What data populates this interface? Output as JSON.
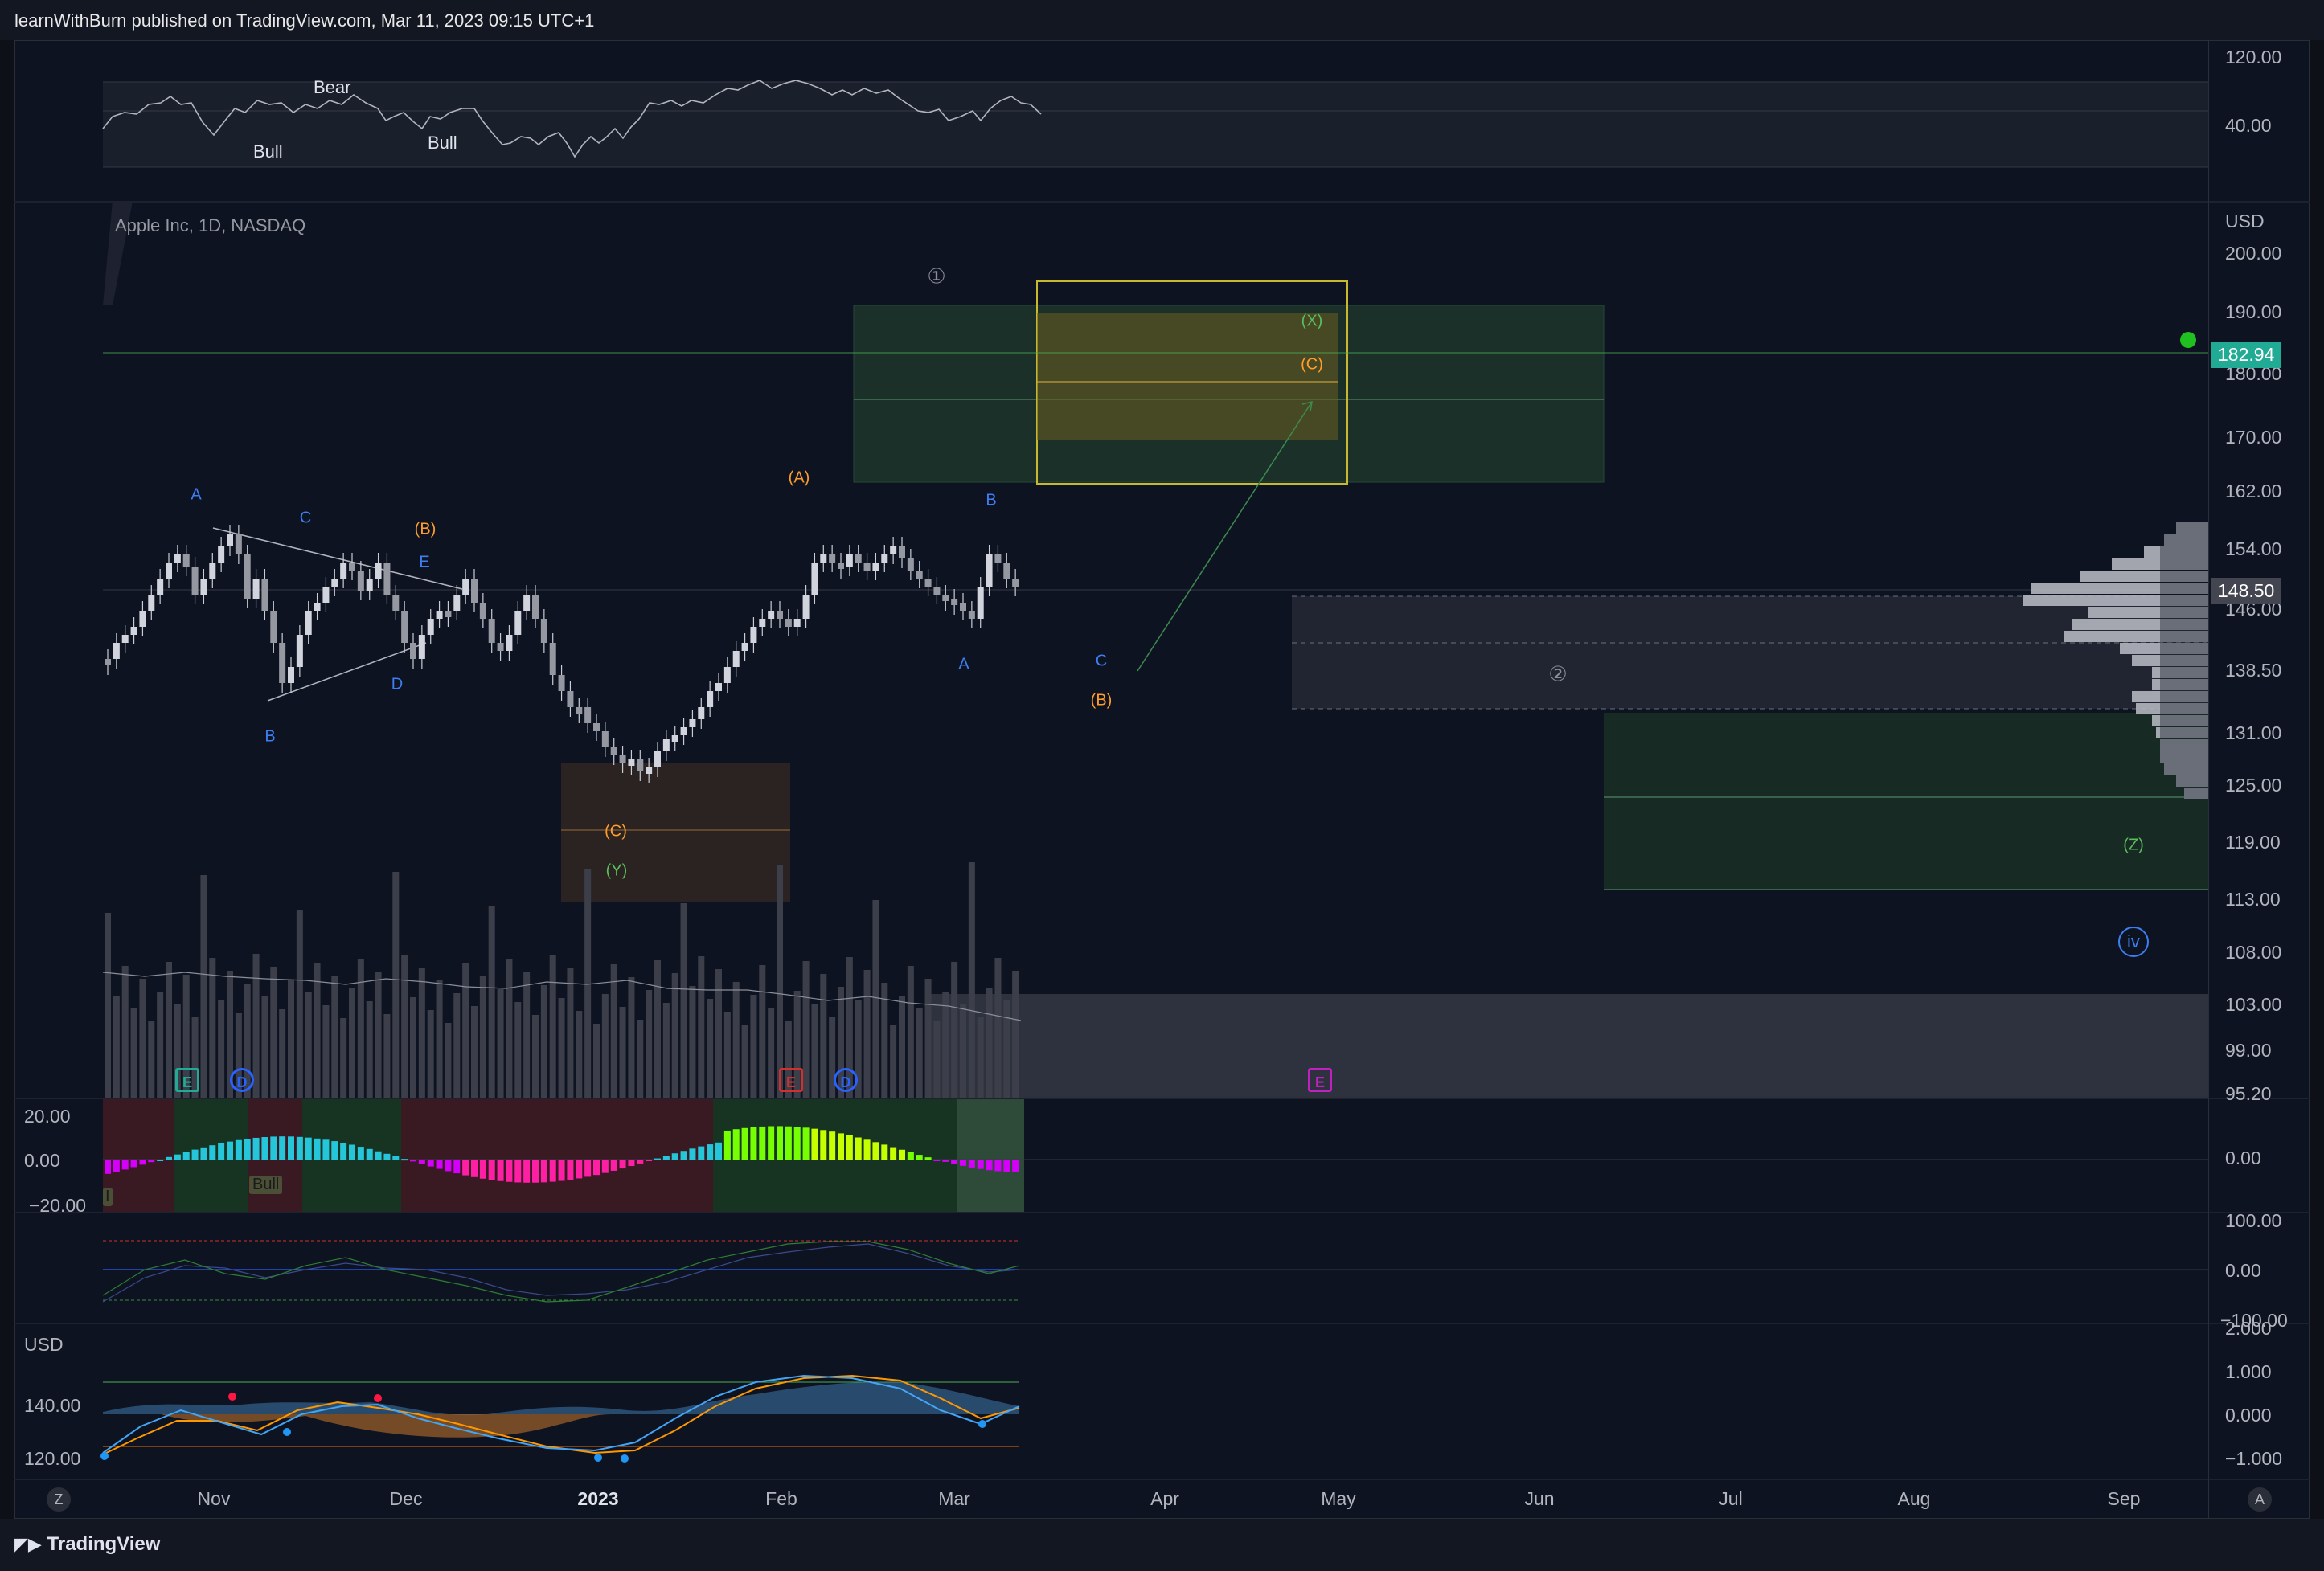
{
  "header": {
    "publish_text": "learnWithBurn published on TradingView.com, Mar 11, 2023 09:15 UTC+1"
  },
  "symbol": {
    "title": "Apple Inc, 1D, NASDAQ",
    "currency": "USD"
  },
  "rsi_pane": {
    "y_labels": [
      "120.00",
      "40.00"
    ],
    "labels": {
      "bear": "Bear",
      "bull1": "Bull",
      "bull2": "Bull"
    }
  },
  "price_axis": {
    "labels": [
      "200.00",
      "190.00",
      "180.00",
      "170.00",
      "162.00",
      "154.00",
      "146.00",
      "138.50",
      "131.00",
      "125.00",
      "119.00",
      "113.00",
      "108.00",
      "103.00",
      "99.00",
      "95.20"
    ],
    "tags": {
      "target": "182.94",
      "last": "148.50"
    },
    "colors": {
      "target": "#22ab94",
      "last": "#434651"
    }
  },
  "wave_labels": {
    "a1": "A",
    "b1": "B",
    "c1": "C",
    "d1": "D",
    "e1": "E",
    "B_paren": "(B)",
    "A_paren": "(A)",
    "B2": "B",
    "A2": "A",
    "C2": "C",
    "B_paren2": "(B)",
    "C_paren_low": "(C)",
    "Y_paren": "(Y)",
    "X_paren": "(X)",
    "C_paren_top": "(C)",
    "Z_paren": "(Z)",
    "circ1": "①",
    "circ2": "②",
    "iv": "iv"
  },
  "events": {
    "e1": "E",
    "d1": "D",
    "e2": "E",
    "d2": "D",
    "e3": "E"
  },
  "osc_pane": {
    "y_labels_left": [
      "20.00",
      "0.00",
      "−20.00"
    ],
    "y_label_right": "0.00",
    "bull": "Bull",
    "marker": "I"
  },
  "stoch_pane": {
    "y_labels": [
      "100.00",
      "0.00",
      "−100.00"
    ]
  },
  "macd_pane": {
    "y_labels_left": [
      "140.00",
      "120.00"
    ],
    "y_labels_right": [
      "2.000",
      "1.000",
      "0.000",
      "−1.000"
    ],
    "currency": "USD"
  },
  "time_axis": {
    "labels": [
      "Nov",
      "Dec",
      "2023",
      "Feb",
      "Mar",
      "Apr",
      "May",
      "Jun",
      "Jul",
      "Aug",
      "Sep"
    ]
  },
  "footer": {
    "brand": "TradingView",
    "left_button": "Z",
    "right_button": "A"
  }
}
